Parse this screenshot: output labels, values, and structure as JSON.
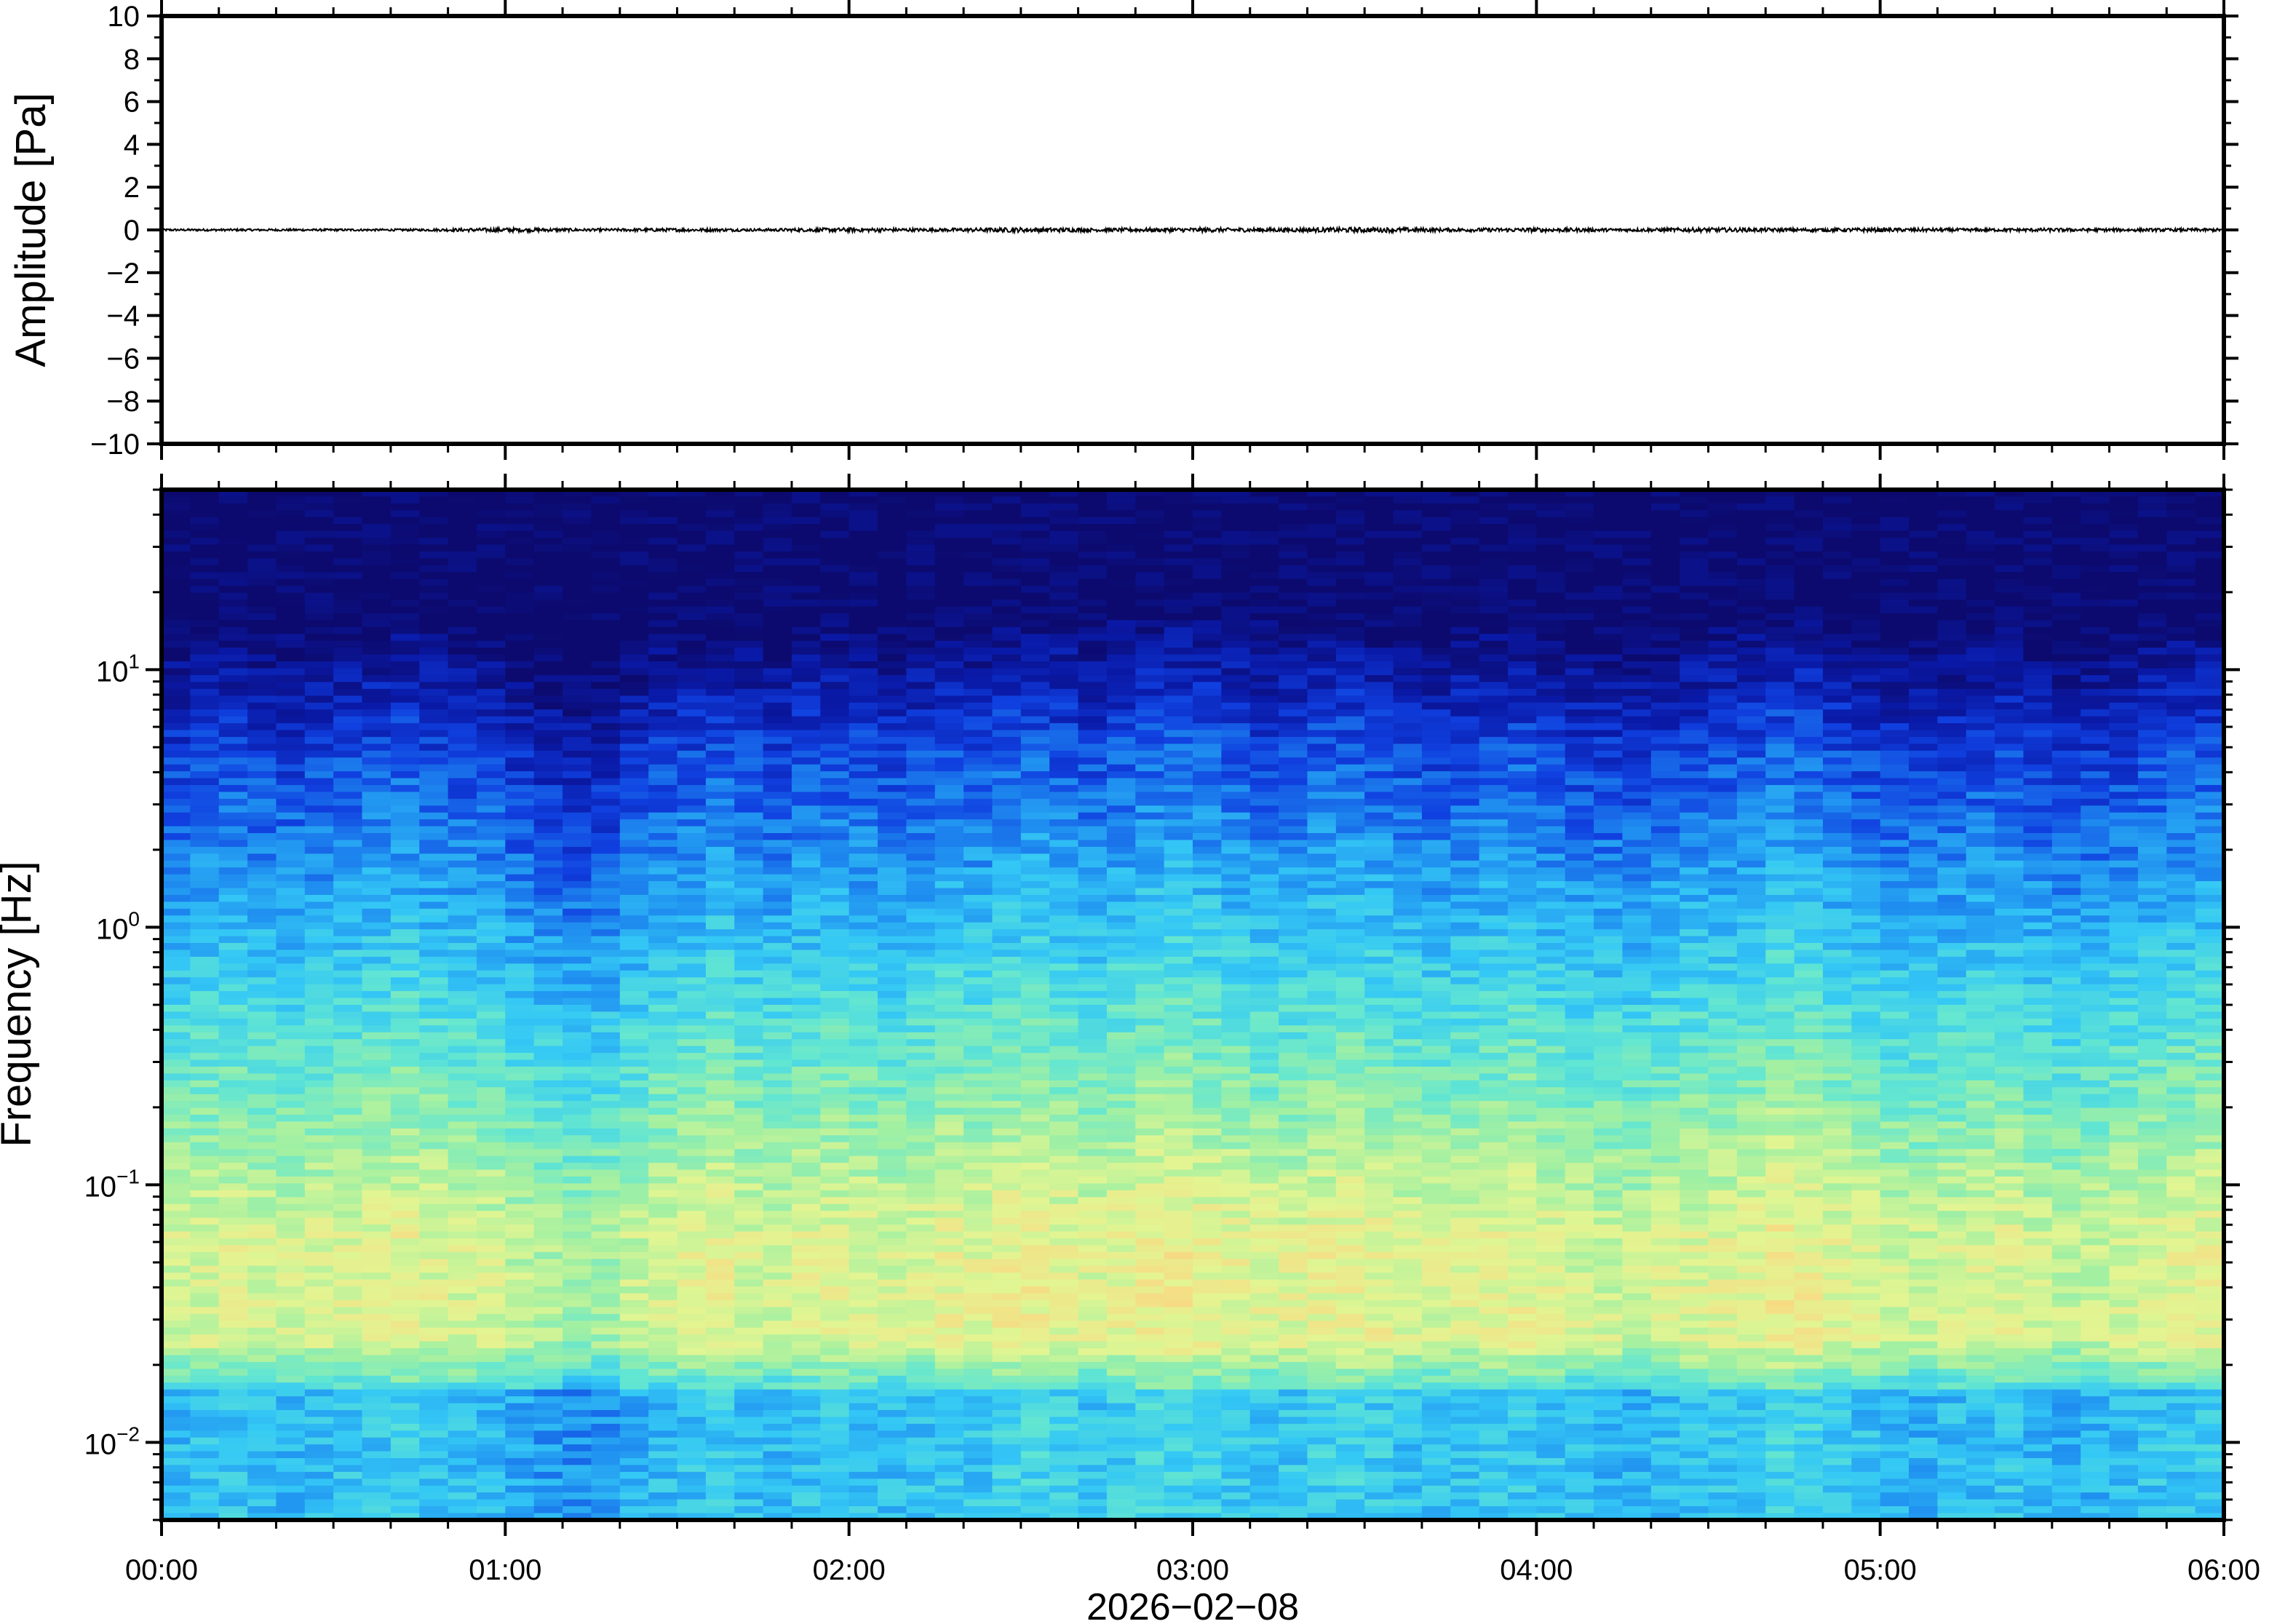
{
  "chart_data": [
    {
      "type": "line",
      "ylabel": "Amplitude [Pa]",
      "ylim": [
        -10,
        10
      ],
      "yticks": [
        10,
        8,
        6,
        4,
        2,
        0,
        -2,
        -4,
        -6,
        -8,
        -10
      ],
      "ytick_labels": [
        "10",
        "8",
        "6",
        "4",
        "2",
        "0",
        "−2",
        "−4",
        "−6",
        "−8",
        "−10"
      ],
      "xlim": [
        "00:00",
        "06:00"
      ],
      "series": [
        {
          "color": "#000000",
          "x_hours": [
            0.0,
            0.25,
            0.5,
            0.75,
            1.0,
            1.25,
            1.5,
            1.75,
            2.0,
            2.25,
            2.5,
            2.75,
            3.0,
            3.25,
            3.5,
            3.75,
            4.0,
            4.25,
            4.5,
            4.75,
            5.0,
            5.25,
            5.5,
            5.75,
            6.0
          ],
          "envelope_pa": [
            0.05,
            0.05,
            0.05,
            0.05,
            0.1,
            0.06,
            0.08,
            0.06,
            0.1,
            0.07,
            0.11,
            0.08,
            0.1,
            0.09,
            0.12,
            0.08,
            0.1,
            0.07,
            0.1,
            0.08,
            0.09,
            0.07,
            0.08,
            0.07,
            0.07
          ]
        }
      ]
    },
    {
      "type": "heatmap",
      "ylabel": "Frequency [Hz]",
      "xlabel": "2026−02−08",
      "yscale": "log",
      "ylim": [
        0.005,
        50
      ],
      "yticks": [
        {
          "value": 10,
          "base": "10",
          "exp": "1"
        },
        {
          "value": 1,
          "base": "10",
          "exp": "0"
        },
        {
          "value": 0.1,
          "base": "10",
          "exp": "−1"
        },
        {
          "value": 0.01,
          "base": "10",
          "exp": "−2"
        }
      ],
      "xlim": [
        0,
        6
      ],
      "xticks": [
        {
          "value": 0,
          "label": "00:00"
        },
        {
          "value": 1,
          "label": "01:00"
        },
        {
          "value": 2,
          "label": "02:00"
        },
        {
          "value": 3,
          "label": "03:00"
        },
        {
          "value": 4,
          "label": "04:00"
        },
        {
          "value": 5,
          "label": "05:00"
        },
        {
          "value": 6,
          "label": "06:00"
        }
      ],
      "colormap": [
        "#0c0a6e",
        "#0a1aa8",
        "#1040e0",
        "#1f8ef0",
        "#34c8f5",
        "#62e6d2",
        "#a2f0a2",
        "#e2f592",
        "#f6dc84",
        "#f5b060"
      ],
      "time_columns": 72,
      "level_by_time_column": [
        0.45,
        0.48,
        0.5,
        0.46,
        0.44,
        0.47,
        0.5,
        0.52,
        0.55,
        0.5,
        0.48,
        0.45,
        0.38,
        0.32,
        0.28,
        0.3,
        0.4,
        0.46,
        0.5,
        0.55,
        0.48,
        0.46,
        0.5,
        0.52,
        0.5,
        0.47,
        0.5,
        0.55,
        0.52,
        0.58,
        0.6,
        0.55,
        0.5,
        0.56,
        0.6,
        0.62,
        0.58,
        0.55,
        0.5,
        0.52,
        0.56,
        0.58,
        0.55,
        0.5,
        0.48,
        0.5,
        0.52,
        0.55,
        0.5,
        0.46,
        0.44,
        0.42,
        0.48,
        0.5,
        0.52,
        0.55,
        0.62,
        0.6,
        0.52,
        0.48,
        0.44,
        0.42,
        0.46,
        0.48,
        0.5,
        0.44,
        0.4,
        0.42,
        0.46,
        0.5,
        0.52,
        0.54
      ]
    }
  ]
}
